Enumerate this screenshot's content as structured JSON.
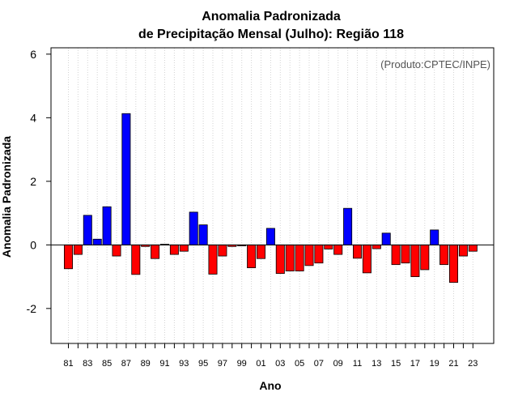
{
  "chart_data": {
    "type": "bar",
    "title_line1": "Anomalia Padronizada",
    "title_line2": "de Precipitação Mensal (Julho): Região 118",
    "xlabel": "Ano",
    "ylabel": "Anomalia Padronizada",
    "annotation": "(Produto:CPTEC/INPE)",
    "ylim": [
      -3.1,
      6.2
    ],
    "yticks": [
      -2,
      0,
      2,
      4,
      6
    ],
    "ytick_labels": [
      "-2",
      "0",
      "2",
      "4",
      "6"
    ],
    "grid": "vertical dotted",
    "colors": {
      "positive": "#0000ff",
      "negative": "#ff0000",
      "zero_line": "#000000",
      "grid": "#d3d3d3"
    },
    "categories": [
      "81",
      "82",
      "83",
      "84",
      "85",
      "86",
      "87",
      "88",
      "89",
      "90",
      "91",
      "92",
      "93",
      "94",
      "95",
      "96",
      "97",
      "98",
      "99",
      "00",
      "01",
      "02",
      "03",
      "04",
      "05",
      "06",
      "07",
      "08",
      "09",
      "10",
      "11",
      "12",
      "13",
      "14",
      "15",
      "16",
      "17",
      "18",
      "19",
      "20",
      "21",
      "22",
      "23"
    ],
    "xtick_labels": [
      "81",
      "",
      "83",
      "",
      "85",
      "",
      "87",
      "",
      "89",
      "",
      "91",
      "",
      "93",
      "",
      "95",
      "",
      "97",
      "",
      "99",
      "",
      "01",
      "",
      "03",
      "",
      "05",
      "",
      "07",
      "",
      "09",
      "",
      "11",
      "",
      "13",
      "",
      "15",
      "",
      "17",
      "",
      "19",
      "",
      "21",
      "",
      "23"
    ],
    "values": [
      -0.75,
      -0.3,
      0.93,
      0.18,
      1.2,
      -0.35,
      4.13,
      -0.93,
      -0.05,
      -0.43,
      0.02,
      -0.3,
      -0.2,
      1.03,
      0.63,
      -0.92,
      -0.35,
      -0.05,
      -0.03,
      -0.72,
      -0.43,
      0.52,
      -0.9,
      -0.82,
      -0.82,
      -0.65,
      -0.57,
      -0.13,
      -0.3,
      1.15,
      -0.42,
      -0.88,
      -0.12,
      0.37,
      -0.62,
      -0.57,
      -1.0,
      -0.78,
      0.47,
      -0.62,
      -1.18,
      -0.35,
      -0.2
    ]
  }
}
